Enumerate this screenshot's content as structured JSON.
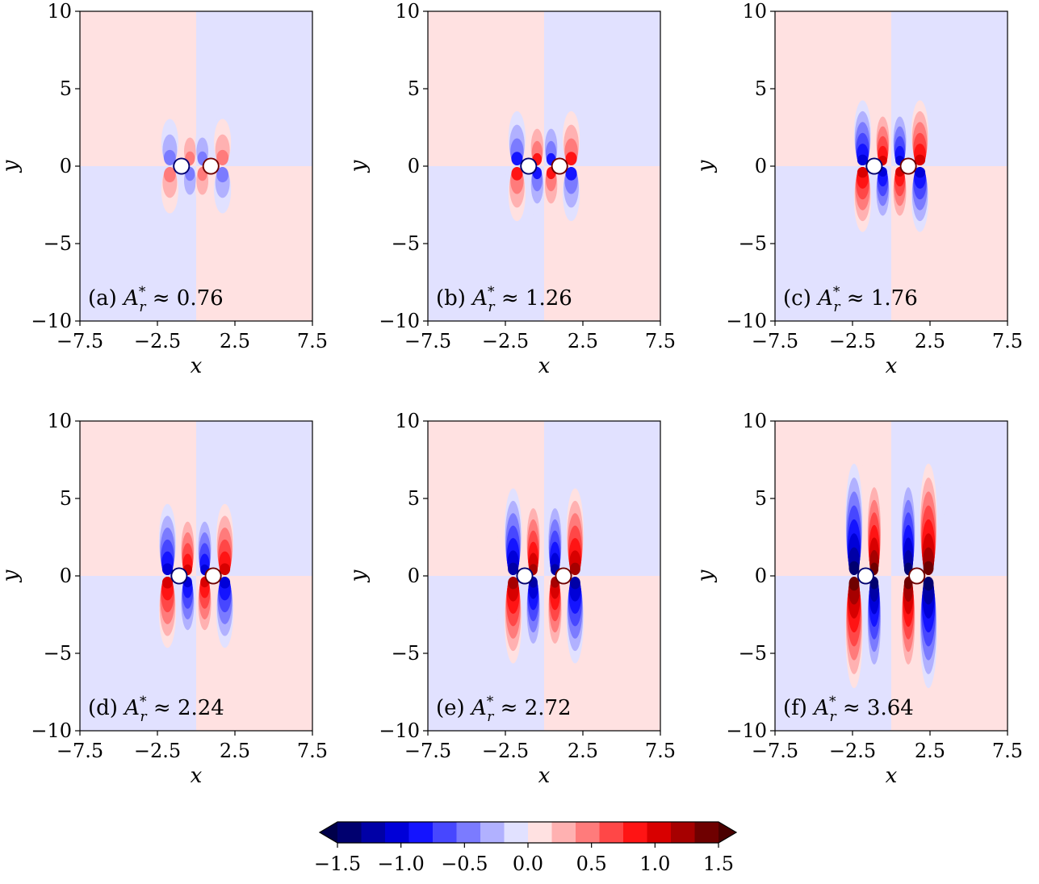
{
  "chart_data": {
    "type": "heatmap",
    "xlabel": "x",
    "ylabel": "y",
    "xlim": [
      -7.5,
      7.5
    ],
    "ylim": [
      -10,
      10
    ],
    "xticks": [
      "−7.5",
      "−2.5",
      "2.5",
      "7.5"
    ],
    "xtick_values": [
      -7.5,
      -2.5,
      2.5,
      7.5
    ],
    "yticks": [
      "10",
      "5",
      "0",
      "−5",
      "−10"
    ],
    "ytick_values": [
      10,
      5,
      0,
      -5,
      -10
    ],
    "panels": [
      {
        "tag": "(a)",
        "value": "0.76",
        "label": "(a) A*r ≈ 0.76",
        "cylinder_x": [
          -0.95,
          0.95
        ],
        "lobe_height": 3.0,
        "lobe_strength": 0.55
      },
      {
        "tag": "(b)",
        "value": "1.26",
        "label": "(b) A*r ≈ 1.26",
        "cylinder_x": [
          -1.0,
          1.0
        ],
        "lobe_height": 3.5,
        "lobe_strength": 0.85
      },
      {
        "tag": "(c)",
        "value": "1.76",
        "label": "(c) A*r ≈ 1.76",
        "cylinder_x": [
          -1.1,
          1.1
        ],
        "lobe_height": 4.2,
        "lobe_strength": 1.05
      },
      {
        "tag": "(d)",
        "value": "2.24",
        "label": "(d) A*r ≈ 2.24",
        "cylinder_x": [
          -1.1,
          1.1
        ],
        "lobe_height": 4.6,
        "lobe_strength": 1.2
      },
      {
        "tag": "(e)",
        "value": "2.72",
        "label": "(e) A*r ≈ 2.72",
        "cylinder_x": [
          -1.25,
          1.25
        ],
        "lobe_height": 5.6,
        "lobe_strength": 1.3
      },
      {
        "tag": "(f)",
        "value": "3.64",
        "label": "(f) A*r ≈ 3.64",
        "cylinder_x": [
          -1.65,
          1.65
        ],
        "lobe_height": 7.2,
        "lobe_strength": 1.45
      }
    ],
    "colorbar": {
      "min": -1.5,
      "max": 1.5,
      "levels": 16,
      "ticks": [
        "−1.5",
        "−1.0",
        "−0.5",
        "0.0",
        "0.5",
        "1.0",
        "1.5"
      ],
      "tick_values": [
        -1.5,
        -1.0,
        -0.5,
        0.0,
        0.5,
        1.0,
        1.5
      ],
      "colors": [
        "#00006f",
        "#0000a6",
        "#0000d8",
        "#1414ff",
        "#4747ff",
        "#7b7bff",
        "#b1b1ff",
        "#e1e1ff",
        "#ffe1e1",
        "#ffb1b1",
        "#ff7b7b",
        "#ff4747",
        "#ff1414",
        "#d80000",
        "#a60000",
        "#6f0000"
      ],
      "extend": "both"
    },
    "colormap": "bwr",
    "background_positive": "#ffe1e1",
    "background_negative": "#e1e1ff"
  }
}
